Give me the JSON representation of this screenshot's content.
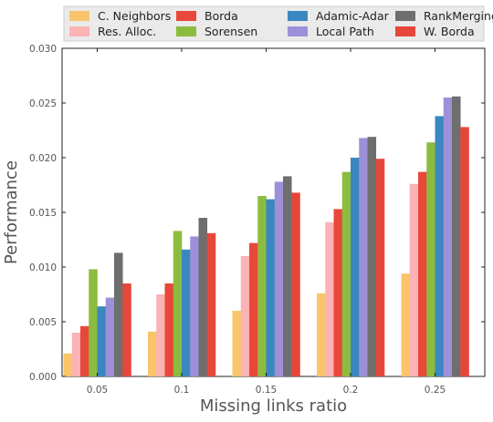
{
  "chart_data": {
    "type": "bar",
    "title": "",
    "xlabel": "Missing links ratio",
    "ylabel": "Performance",
    "categories": [
      "0.05",
      "0.1",
      "0.15",
      "0.2",
      "0.25"
    ],
    "ylim": [
      0,
      0.03
    ],
    "yticks": [
      "0.000",
      "0.005",
      "0.010",
      "0.015",
      "0.020",
      "0.025",
      "0.030"
    ],
    "grid": false,
    "legend_position": "top",
    "series": [
      {
        "name": "C. Neighbors",
        "color": "#fac56a",
        "values": [
          0.0021,
          0.0041,
          0.006,
          0.0076,
          0.0094
        ]
      },
      {
        "name": "Res. Alloc.",
        "color": "#fbb3b5",
        "values": [
          0.004,
          0.0075,
          0.011,
          0.0141,
          0.0176
        ]
      },
      {
        "name": "Borda",
        "color": "#e8483a",
        "values": [
          0.0046,
          0.0085,
          0.0122,
          0.0153,
          0.0187
        ]
      },
      {
        "name": "Sorensen",
        "color": "#8cbc3f",
        "values": [
          0.0098,
          0.0133,
          0.0165,
          0.0187,
          0.0214
        ]
      },
      {
        "name": "Adamic-Adar",
        "color": "#3b87c0",
        "values": [
          0.0064,
          0.0116,
          0.0162,
          0.02,
          0.0238
        ]
      },
      {
        "name": "Local Path",
        "color": "#9d90d8",
        "values": [
          0.0072,
          0.0128,
          0.0178,
          0.0218,
          0.0255
        ]
      },
      {
        "name": "RankMerging",
        "color": "#6e6e6e",
        "values": [
          0.0113,
          0.0145,
          0.0183,
          0.0219,
          0.0256
        ]
      },
      {
        "name": "W. Borda",
        "color": "#e5483a",
        "values": [
          0.0085,
          0.0131,
          0.0168,
          0.0199,
          0.0228
        ]
      }
    ]
  }
}
